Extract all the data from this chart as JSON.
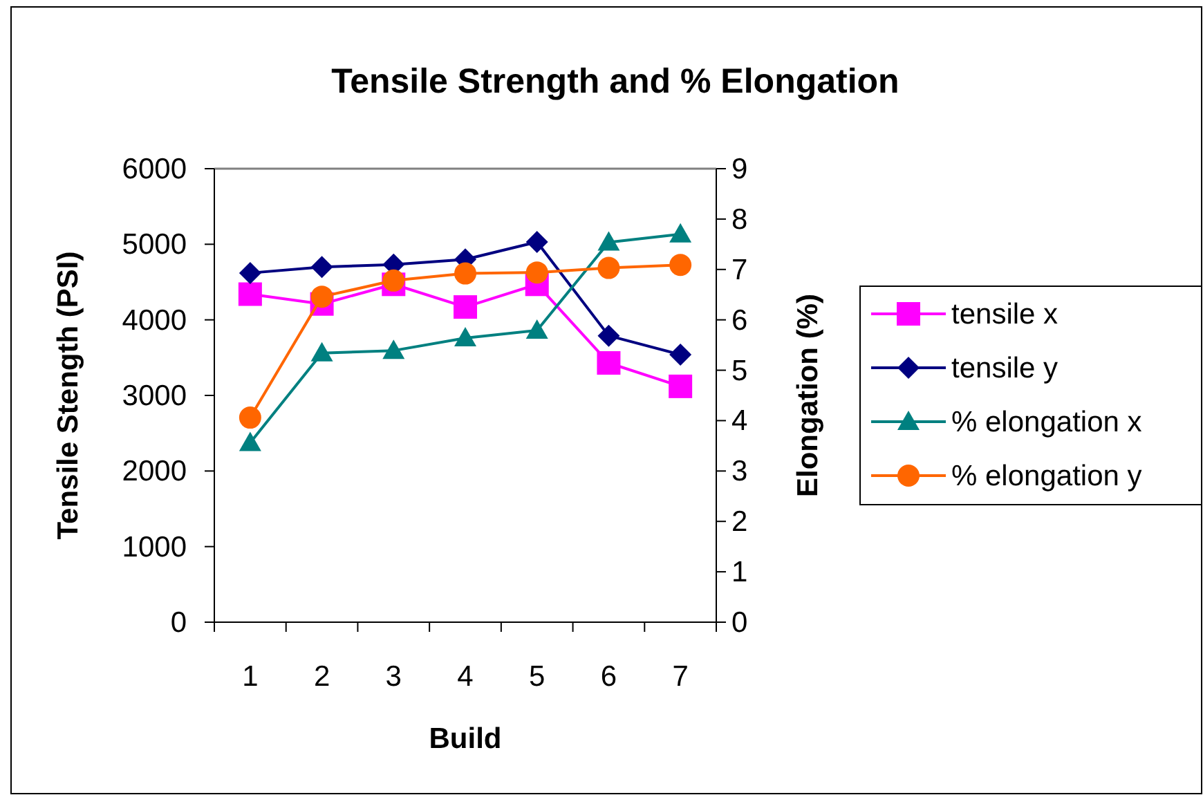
{
  "chart_data": {
    "type": "line",
    "title": "Tensile Strength and % Elongation",
    "xlabel": "Build",
    "ylabel": "Tensile Stength (PSI)",
    "y2label": "Elongation (%)",
    "categories": [
      "1",
      "2",
      "3",
      "4",
      "5",
      "6",
      "7"
    ],
    "series": [
      {
        "name": "tensile x",
        "color": "#ff00ff",
        "marker": "square",
        "values": [
          4340,
          4210,
          4470,
          4170,
          4470,
          3430,
          3120
        ]
      },
      {
        "name": "tensile y",
        "color": "#000080",
        "marker": "diamond",
        "values": [
          4620,
          4700,
          4730,
          4800,
          5030,
          3790,
          3540
        ]
      },
      {
        "name": "% elongation x",
        "color": "#008080",
        "marker": "triangle",
        "axis": "y2",
        "values": [
          3.56,
          5.34,
          5.39,
          5.64,
          5.79,
          7.54,
          7.7
        ]
      },
      {
        "name": "% elongation y",
        "color": "#ff6600",
        "marker": "circle",
        "axis": "y2",
        "values": [
          4.06,
          6.46,
          6.78,
          6.92,
          6.94,
          7.03,
          7.09
        ]
      }
    ],
    "ylim": [
      0,
      6000
    ],
    "yticks": [
      0,
      1000,
      2000,
      3000,
      4000,
      5000,
      6000
    ],
    "y2lim": [
      0,
      9
    ],
    "y2ticks": [
      0,
      1,
      2,
      3,
      4,
      5,
      6,
      7,
      8,
      9
    ],
    "grid": false,
    "legend": "right",
    "line_style": "solid"
  }
}
